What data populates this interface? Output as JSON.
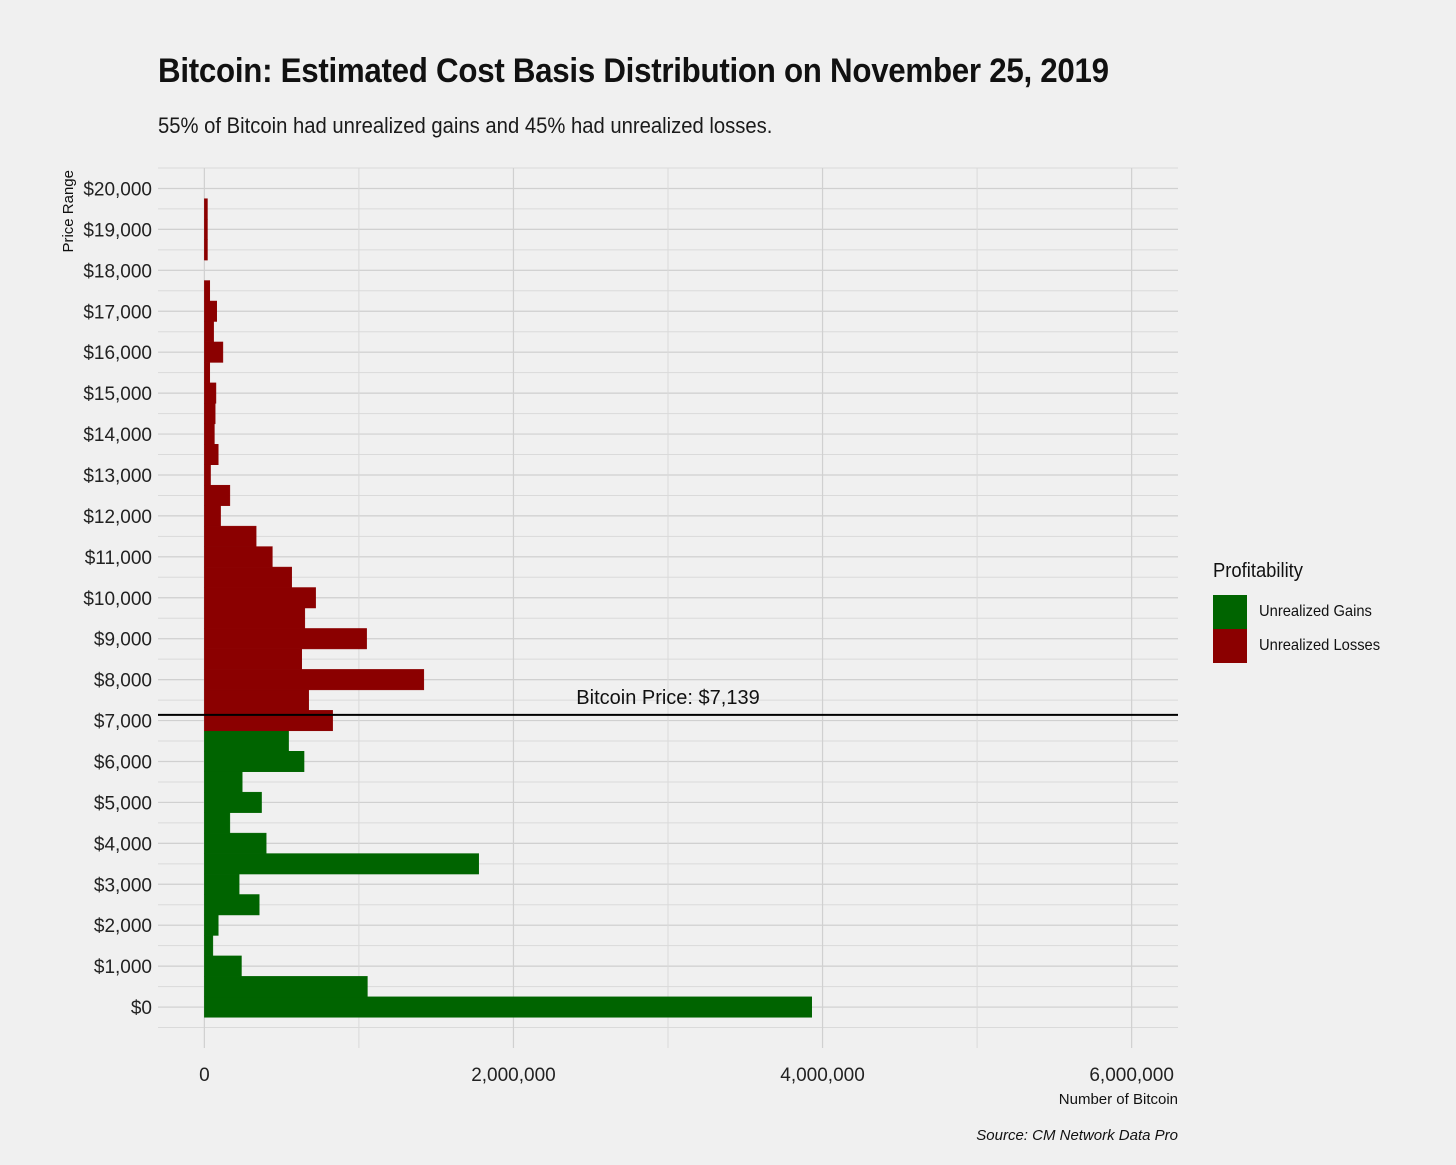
{
  "chart_data": {
    "type": "bar",
    "orientation": "horizontal",
    "title": "Bitcoin: Estimated Cost Basis Distribution on November 25, 2019",
    "subtitle": "55% of Bitcoin had unrealized gains and 45% had unrealized losses.",
    "xlabel": "Number of Bitcoin",
    "ylabel": "Price Range",
    "xlim": [
      -300000,
      6300000
    ],
    "ylim": [
      -1000,
      20500
    ],
    "x_ticks": [
      0,
      2000000,
      4000000,
      6000000
    ],
    "x_tick_labels": [
      "0",
      "2,000,000",
      "4,000,000",
      "6,000,000"
    ],
    "y_ticks": [
      0,
      1000,
      2000,
      3000,
      4000,
      5000,
      6000,
      7000,
      8000,
      9000,
      10000,
      11000,
      12000,
      13000,
      14000,
      15000,
      16000,
      17000,
      18000,
      19000,
      20000
    ],
    "y_tick_labels": [
      "$0",
      "$1,000",
      "$2,000",
      "$3,000",
      "$4,000",
      "$5,000",
      "$6,000",
      "$7,000",
      "$8,000",
      "$9,000",
      "$10,000",
      "$11,000",
      "$12,000",
      "$13,000",
      "$14,000",
      "$15,000",
      "$16,000",
      "$17,000",
      "$18,000",
      "$19,000",
      "$20,000"
    ],
    "bin_width": 500,
    "price_line": {
      "value": 7139,
      "label": "Bitcoin Price: $7,139"
    },
    "colors": {
      "Unrealized Gains": "#006400",
      "Unrealized Losses": "#8b0000"
    },
    "bins": [
      {
        "price": 0,
        "count": 3930000,
        "group": "Unrealized Gains"
      },
      {
        "price": 500,
        "count": 1055000,
        "group": "Unrealized Gains"
      },
      {
        "price": 1000,
        "count": 240000,
        "group": "Unrealized Gains"
      },
      {
        "price": 1500,
        "count": 55000,
        "group": "Unrealized Gains"
      },
      {
        "price": 2000,
        "count": 90000,
        "group": "Unrealized Gains"
      },
      {
        "price": 2500,
        "count": 355000,
        "group": "Unrealized Gains"
      },
      {
        "price": 3000,
        "count": 225000,
        "group": "Unrealized Gains"
      },
      {
        "price": 3500,
        "count": 1775000,
        "group": "Unrealized Gains"
      },
      {
        "price": 4000,
        "count": 400000,
        "group": "Unrealized Gains"
      },
      {
        "price": 4500,
        "count": 165000,
        "group": "Unrealized Gains"
      },
      {
        "price": 5000,
        "count": 370000,
        "group": "Unrealized Gains"
      },
      {
        "price": 5500,
        "count": 245000,
        "group": "Unrealized Gains"
      },
      {
        "price": 6000,
        "count": 645000,
        "group": "Unrealized Gains"
      },
      {
        "price": 6500,
        "count": 545000,
        "group": "Unrealized Gains"
      },
      {
        "price": 7000,
        "count": 830000,
        "group": "Unrealized Losses"
      },
      {
        "price": 7500,
        "count": 675000,
        "group": "Unrealized Losses"
      },
      {
        "price": 8000,
        "count": 1420000,
        "group": "Unrealized Losses"
      },
      {
        "price": 8500,
        "count": 630000,
        "group": "Unrealized Losses"
      },
      {
        "price": 9000,
        "count": 1050000,
        "group": "Unrealized Losses"
      },
      {
        "price": 9500,
        "count": 650000,
        "group": "Unrealized Losses"
      },
      {
        "price": 10000,
        "count": 720000,
        "group": "Unrealized Losses"
      },
      {
        "price": 10500,
        "count": 565000,
        "group": "Unrealized Losses"
      },
      {
        "price": 11000,
        "count": 440000,
        "group": "Unrealized Losses"
      },
      {
        "price": 11500,
        "count": 335000,
        "group": "Unrealized Losses"
      },
      {
        "price": 12000,
        "count": 105000,
        "group": "Unrealized Losses"
      },
      {
        "price": 12500,
        "count": 165000,
        "group": "Unrealized Losses"
      },
      {
        "price": 13000,
        "count": 40000,
        "group": "Unrealized Losses"
      },
      {
        "price": 13500,
        "count": 90000,
        "group": "Unrealized Losses"
      },
      {
        "price": 14000,
        "count": 65000,
        "group": "Unrealized Losses"
      },
      {
        "price": 14500,
        "count": 70000,
        "group": "Unrealized Losses"
      },
      {
        "price": 15000,
        "count": 75000,
        "group": "Unrealized Losses"
      },
      {
        "price": 15500,
        "count": 35000,
        "group": "Unrealized Losses"
      },
      {
        "price": 16000,
        "count": 120000,
        "group": "Unrealized Losses"
      },
      {
        "price": 16500,
        "count": 60000,
        "group": "Unrealized Losses"
      },
      {
        "price": 17000,
        "count": 80000,
        "group": "Unrealized Losses"
      },
      {
        "price": 17500,
        "count": 35000,
        "group": "Unrealized Losses"
      },
      {
        "price": 18000,
        "count": 0,
        "group": "Unrealized Losses"
      },
      {
        "price": 18500,
        "count": 20000,
        "group": "Unrealized Losses"
      },
      {
        "price": 19000,
        "count": 20000,
        "group": "Unrealized Losses"
      },
      {
        "price": 19500,
        "count": 20000,
        "group": "Unrealized Losses"
      }
    ],
    "legend": {
      "title": "Profitability",
      "placement": "right",
      "entries": [
        "Unrealized Gains",
        "Unrealized Losses"
      ]
    },
    "source": "Source: CM Network Data Pro",
    "grid": true
  }
}
